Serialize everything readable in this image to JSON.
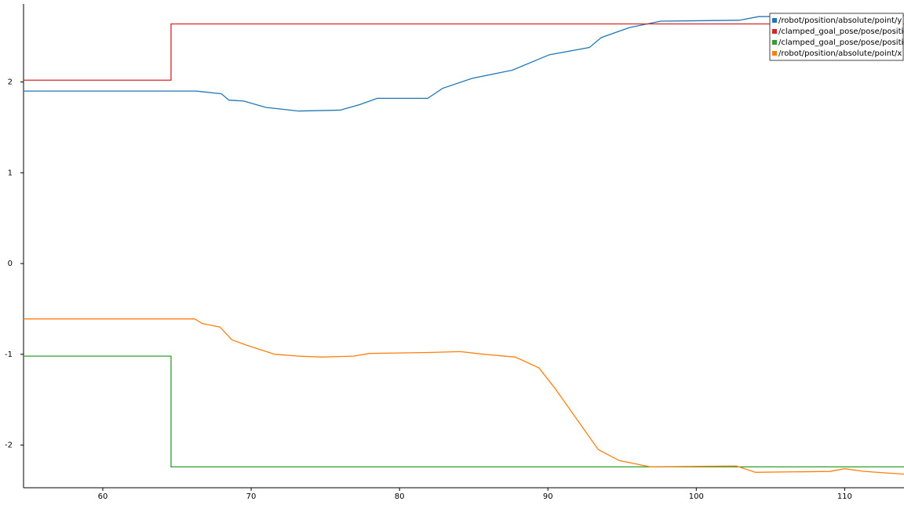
{
  "chart_data": {
    "type": "line",
    "xlim": [
      54.66,
      114.0
    ],
    "xticks": [
      60,
      70,
      80,
      90,
      100,
      110
    ],
    "ylim": [
      -2.47,
      2.86
    ],
    "yticks": [
      -2,
      -1,
      0,
      1,
      2
    ],
    "legend": "upper right",
    "series": [
      {
        "name": "/robot/position/absolute/point/y",
        "color": "#1f77b4",
        "x": [
          54.66,
          66.3,
          68.0,
          68.5,
          69.5,
          71.0,
          73.2,
          76.0,
          77.3,
          78.5,
          81.9,
          82.9,
          84.9,
          87.6,
          90.1,
          92.8,
          93.6,
          95.5,
          97.6,
          102.9,
          104.2,
          114.0
        ],
        "values": [
          1.9,
          1.9,
          1.87,
          1.8,
          1.79,
          1.72,
          1.68,
          1.69,
          1.75,
          1.82,
          1.82,
          1.93,
          2.04,
          2.13,
          2.3,
          2.38,
          2.49,
          2.6,
          2.67,
          2.68,
          2.72,
          2.73
        ]
      },
      {
        "name": "/clamped_goal_pose/pose/position/y",
        "color": "#d62728",
        "x": [
          54.66,
          64.6,
          64.6,
          114.0
        ],
        "values": [
          2.02,
          2.02,
          2.64,
          2.64
        ]
      },
      {
        "name": "/clamped_goal_pose/pose/position/x",
        "color": "#2ca02c",
        "x": [
          54.66,
          64.6,
          64.6,
          114.0
        ],
        "values": [
          -1.02,
          -1.02,
          -2.24,
          -2.24
        ]
      },
      {
        "name": "/robot/position/absolute/point/x",
        "color": "#ff7f0e",
        "x": [
          54.66,
          66.2,
          66.7,
          67.9,
          68.7,
          69.7,
          71.6,
          73.2,
          74.8,
          76.9,
          78.0,
          82.0,
          84.1,
          85.7,
          87.8,
          89.4,
          90.5,
          92.1,
          93.4,
          94.8,
          96.9,
          102.7,
          104.0,
          109.0,
          110.0,
          111.3,
          114.0
        ],
        "values": [
          -0.61,
          -0.61,
          -0.66,
          -0.7,
          -0.84,
          -0.9,
          -1.0,
          -1.02,
          -1.03,
          -1.02,
          -0.99,
          -0.98,
          -0.97,
          -1.0,
          -1.03,
          -1.15,
          -1.38,
          -1.75,
          -2.05,
          -2.17,
          -2.24,
          -2.23,
          -2.3,
          -2.29,
          -2.26,
          -2.29,
          -2.32
        ]
      }
    ]
  }
}
